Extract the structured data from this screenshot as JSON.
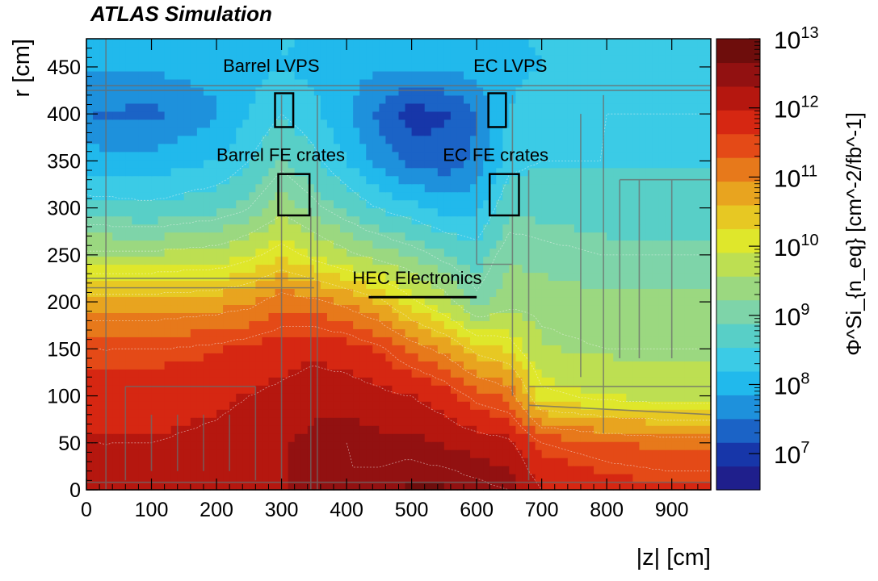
{
  "chart_data": {
    "type": "heatmap",
    "title": "ATLAS Simulation",
    "xlabel": "|z| [cm]",
    "ylabel": "r [cm]",
    "colorbar_label": "Φ^Si_{n_eq} [cm^-2/fb^-1]",
    "xlim": [
      0,
      960
    ],
    "ylim": [
      0,
      480
    ],
    "x_ticks": [
      0,
      100,
      200,
      300,
      400,
      500,
      600,
      700,
      800,
      900
    ],
    "y_ticks": [
      0,
      50,
      100,
      150,
      200,
      250,
      300,
      350,
      400,
      450
    ],
    "color_scale": "log",
    "zlim": [
      3000000,
      10000000000000
    ],
    "colorbar_ticks": [
      {
        "value": 10000000,
        "label_base": "10",
        "label_exp": "7"
      },
      {
        "value": 100000000,
        "label_base": "10",
        "label_exp": "8"
      },
      {
        "value": 1000000000,
        "label_base": "10",
        "label_exp": "9"
      },
      {
        "value": 10000000000,
        "label_base": "10",
        "label_exp": "10"
      },
      {
        "value": 100000000000,
        "label_base": "10",
        "label_exp": "11"
      },
      {
        "value": 1000000000000,
        "label_base": "10",
        "label_exp": "12"
      },
      {
        "value": 10000000000000,
        "label_base": "10",
        "label_exp": "13"
      }
    ],
    "z_description": "1 MeV neutron-equivalent silicon fluence per fb^-1, log10 levels sampled on a coarse (z, r) grid",
    "z_grid": {
      "z": [
        0,
        100,
        200,
        250,
        300,
        350,
        400,
        450,
        500,
        550,
        600,
        650,
        700,
        800,
        900,
        960
      ],
      "r": [
        0,
        50,
        100,
        150,
        200,
        250,
        300,
        350,
        400,
        450,
        480
      ],
      "log10_values": [
        [
          12.1,
          12.1,
          12.1,
          12.2,
          12.3,
          12.4,
          12.5,
          12.6,
          12.7,
          12.7,
          12.6,
          12.5,
          12.0,
          11.8,
          11.7,
          11.7
        ],
        [
          12.0,
          12.0,
          12.1,
          12.2,
          12.3,
          12.4,
          12.5,
          12.4,
          12.4,
          12.3,
          12.2,
          12.1,
          11.5,
          11.3,
          11.2,
          11.2
        ],
        [
          11.8,
          11.8,
          11.9,
          12.0,
          12.1,
          12.2,
          12.2,
          12.1,
          12.0,
          11.8,
          11.4,
          11.2,
          10.1,
          9.9,
          9.8,
          9.8
        ],
        [
          11.5,
          11.5,
          11.6,
          11.7,
          11.8,
          11.9,
          11.8,
          11.6,
          11.2,
          10.9,
          10.4,
          10.2,
          9.6,
          9.5,
          9.5,
          9.5
        ],
        [
          10.7,
          10.7,
          10.8,
          10.9,
          11.2,
          11.1,
          10.9,
          10.6,
          10.1,
          9.7,
          9.1,
          9.4,
          9.4,
          9.3,
          9.3,
          9.3
        ],
        [
          9.6,
          9.6,
          9.7,
          9.9,
          10.2,
          9.9,
          9.6,
          9.4,
          9.2,
          8.9,
          8.7,
          9.2,
          9.1,
          9.0,
          9.0,
          9.0
        ],
        [
          8.7,
          8.6,
          8.8,
          9.0,
          9.4,
          9.1,
          8.8,
          8.5,
          8.3,
          8.1,
          8.1,
          8.8,
          8.8,
          8.7,
          8.7,
          8.7
        ],
        [
          8.0,
          8.0,
          8.2,
          8.5,
          8.9,
          8.6,
          8.2,
          7.7,
          7.4,
          7.3,
          7.6,
          8.4,
          8.5,
          8.5,
          8.5,
          8.5
        ],
        [
          7.5,
          7.4,
          7.8,
          8.2,
          8.5,
          8.3,
          7.9,
          7.4,
          7.0,
          7.1,
          7.5,
          8.2,
          8.4,
          8.5,
          8.5,
          8.5
        ],
        [
          7.9,
          7.9,
          8.0,
          8.1,
          8.2,
          8.1,
          8.0,
          7.9,
          7.9,
          7.9,
          8.0,
          8.1,
          8.2,
          8.3,
          8.3,
          8.3
        ],
        [
          8.1,
          8.1,
          8.1,
          8.1,
          8.2,
          8.2,
          8.1,
          8.1,
          8.1,
          8.1,
          8.1,
          8.2,
          8.2,
          8.3,
          8.3,
          8.3
        ]
      ]
    },
    "annotations": [
      {
        "label": "Barrel LVPS",
        "box_z": [
          290,
          318
        ],
        "box_r": [
          386,
          422
        ],
        "text_z": 210,
        "text_r": 445
      },
      {
        "label": "EC LVPS",
        "box_z": [
          618,
          645
        ],
        "box_r": [
          386,
          422
        ],
        "text_z": 595,
        "text_r": 445
      },
      {
        "label": "Barrel FE crates",
        "box_z": [
          295,
          343
        ],
        "box_r": [
          292,
          336
        ],
        "text_z": 200,
        "text_r": 350
      },
      {
        "label": "EC FE crates",
        "box_z": [
          620,
          665
        ],
        "box_r": [
          292,
          336
        ],
        "text_z": 548,
        "text_r": 350
      },
      {
        "label": "HEC Electronics",
        "line_z": [
          434,
          600
        ],
        "line_r": 205,
        "text_z": 409,
        "text_r": 219
      }
    ]
  },
  "colors": {
    "palette": [
      "#1f1f8c",
      "#1736a9",
      "#1b63c6",
      "#1e91dc",
      "#21b9ec",
      "#3bcbe6",
      "#58cfc7",
      "#7ed4a9",
      "#9bd880",
      "#bddf52",
      "#dfe72b",
      "#e7c823",
      "#e8a41f",
      "#e7791b",
      "#e44a17",
      "#d62712",
      "#b5170f",
      "#921111",
      "#6e0d0c"
    ],
    "detector_outline": "#6b6b6b",
    "contour": "#f4f4f4"
  }
}
